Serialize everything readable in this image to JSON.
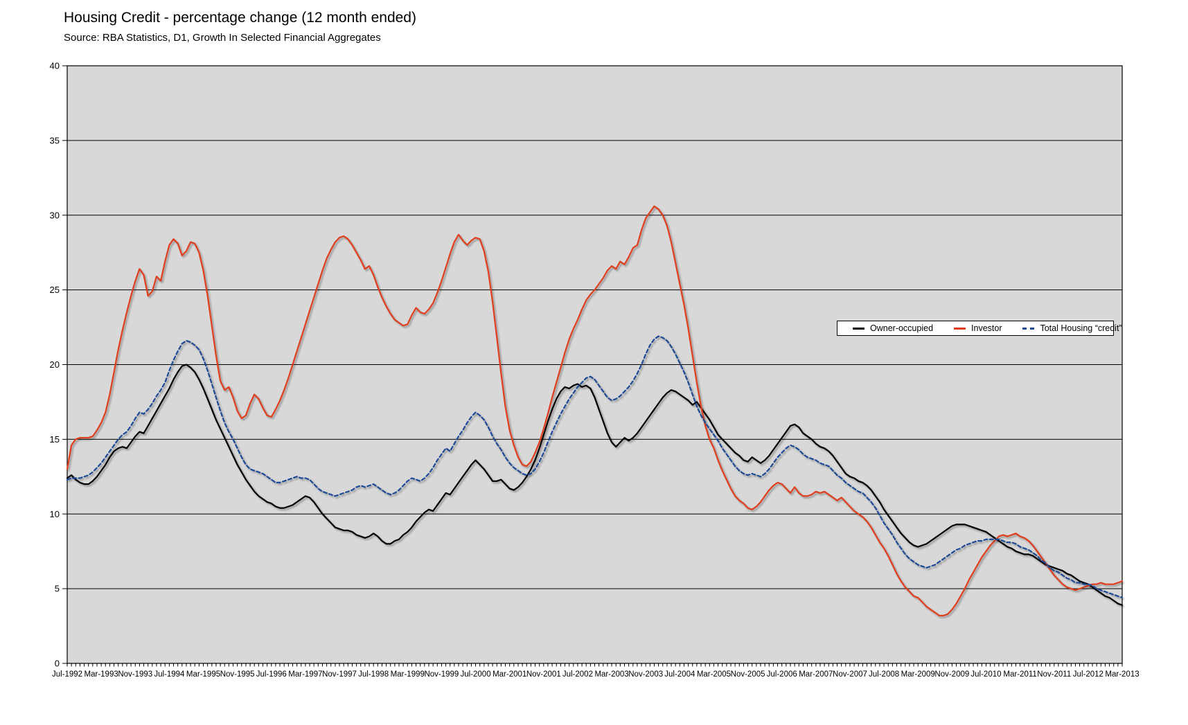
{
  "chart_data": {
    "type": "line",
    "title": "Housing Credit - percentage change (12 month ended)",
    "source": "Source: RBA Statistics, D1, Growth In Selected Financial Aggregates",
    "ylim": [
      0,
      40
    ],
    "ytick_step": 5,
    "grid": "horizontal",
    "plot_bg": "#d8d8d8",
    "axis_color": "#000000",
    "legend_position": "middle-right",
    "x_start": "Jul-1992",
    "x_end": "Mar-2013",
    "x_interval": "monthly",
    "x_tick_labels": [
      "Jul-1992",
      "Mar-1993",
      "Nov-1993",
      "Jul-1994",
      "Mar-1995",
      "Nov-1995",
      "Jul-1996",
      "Mar-1997",
      "Nov-1997",
      "Jul-1998",
      "Mar-1999",
      "Nov-1999",
      "Jul-2000",
      "Mar-2001",
      "Nov-2001",
      "Jul-2002",
      "Mar-2003",
      "Nov-2003",
      "Jul-2004",
      "Mar-2005",
      "Nov-2005",
      "Jul-2006",
      "Mar-2007",
      "Nov-2007",
      "Jul-2008",
      "Mar-2009",
      "Nov-2009",
      "Jul-2010",
      "Mar-2011",
      "Nov-2011",
      "Jul-2012",
      "Mar-2013"
    ],
    "x_label_every_n_months": 8,
    "series": [
      {
        "name": "Owner-occupied",
        "color": "#000000",
        "style": "solid",
        "values": [
          12.4,
          12.6,
          12.3,
          12.1,
          12.0,
          12.0,
          12.2,
          12.5,
          12.9,
          13.3,
          13.8,
          14.2,
          14.4,
          14.5,
          14.4,
          14.8,
          15.2,
          15.5,
          15.4,
          15.9,
          16.4,
          16.9,
          17.4,
          17.9,
          18.4,
          19.0,
          19.5,
          19.9,
          20.0,
          19.8,
          19.5,
          19.0,
          18.4,
          17.7,
          17.0,
          16.3,
          15.7,
          15.1,
          14.5,
          13.9,
          13.3,
          12.8,
          12.3,
          11.9,
          11.5,
          11.2,
          11.0,
          10.8,
          10.7,
          10.5,
          10.4,
          10.4,
          10.5,
          10.6,
          10.8,
          11.0,
          11.2,
          11.1,
          10.8,
          10.4,
          10.0,
          9.7,
          9.4,
          9.1,
          9.0,
          8.9,
          8.9,
          8.8,
          8.6,
          8.5,
          8.4,
          8.5,
          8.7,
          8.5,
          8.2,
          8.0,
          8.0,
          8.2,
          8.3,
          8.6,
          8.8,
          9.1,
          9.5,
          9.8,
          10.1,
          10.3,
          10.2,
          10.6,
          11.0,
          11.4,
          11.3,
          11.7,
          12.1,
          12.5,
          12.9,
          13.3,
          13.6,
          13.3,
          13.0,
          12.6,
          12.2,
          12.2,
          12.3,
          12.0,
          11.7,
          11.6,
          11.8,
          12.1,
          12.5,
          13.0,
          13.6,
          14.4,
          15.3,
          16.2,
          17.0,
          17.7,
          18.2,
          18.5,
          18.4,
          18.6,
          18.7,
          18.5,
          18.6,
          18.4,
          17.8,
          17.0,
          16.2,
          15.4,
          14.8,
          14.5,
          14.8,
          15.1,
          14.9,
          15.1,
          15.4,
          15.8,
          16.2,
          16.6,
          17.0,
          17.4,
          17.8,
          18.1,
          18.3,
          18.2,
          18.0,
          17.8,
          17.6,
          17.3,
          17.5,
          17.1,
          16.7,
          16.3,
          15.8,
          15.3,
          15.0,
          14.7,
          14.4,
          14.1,
          13.9,
          13.6,
          13.5,
          13.8,
          13.6,
          13.4,
          13.6,
          13.9,
          14.3,
          14.7,
          15.1,
          15.5,
          15.9,
          16.0,
          15.8,
          15.4,
          15.2,
          15.0,
          14.7,
          14.5,
          14.4,
          14.2,
          13.9,
          13.5,
          13.1,
          12.7,
          12.5,
          12.4,
          12.2,
          12.1,
          11.9,
          11.6,
          11.2,
          10.8,
          10.3,
          9.9,
          9.5,
          9.1,
          8.7,
          8.4,
          8.1,
          7.9,
          7.8,
          7.9,
          8.0,
          8.2,
          8.4,
          8.6,
          8.8,
          9.0,
          9.2,
          9.3,
          9.3,
          9.3,
          9.2,
          9.1,
          9.0,
          8.9,
          8.8,
          8.6,
          8.4,
          8.2,
          8.0,
          7.8,
          7.7,
          7.5,
          7.4,
          7.3,
          7.3,
          7.2,
          7.0,
          6.8,
          6.6,
          6.5,
          6.4,
          6.3,
          6.2,
          6.0,
          5.9,
          5.7,
          5.5,
          5.4,
          5.3,
          5.1,
          4.9,
          4.7,
          4.5,
          4.4,
          4.2,
          4.0,
          3.9
        ]
      },
      {
        "name": "Investor",
        "color": "#e03c1c",
        "style": "solid",
        "values": [
          13.0,
          14.6,
          15.0,
          15.1,
          15.1,
          15.1,
          15.2,
          15.6,
          16.1,
          16.8,
          18.0,
          19.5,
          21.0,
          22.3,
          23.5,
          24.6,
          25.6,
          26.4,
          26.0,
          24.6,
          24.9,
          25.9,
          25.6,
          26.9,
          28.0,
          28.4,
          28.1,
          27.3,
          27.6,
          28.2,
          28.1,
          27.5,
          26.3,
          24.6,
          22.6,
          20.6,
          18.9,
          18.3,
          18.5,
          17.8,
          16.9,
          16.4,
          16.6,
          17.4,
          18.0,
          17.7,
          17.1,
          16.6,
          16.5,
          17.0,
          17.6,
          18.3,
          19.1,
          20.0,
          20.9,
          21.8,
          22.7,
          23.6,
          24.5,
          25.4,
          26.3,
          27.1,
          27.7,
          28.2,
          28.5,
          28.6,
          28.4,
          28.0,
          27.5,
          27.0,
          26.4,
          26.6,
          26.0,
          25.2,
          24.5,
          23.9,
          23.4,
          23.0,
          22.8,
          22.6,
          22.7,
          23.3,
          23.8,
          23.5,
          23.4,
          23.7,
          24.1,
          24.8,
          25.6,
          26.5,
          27.4,
          28.2,
          28.7,
          28.3,
          28.0,
          28.3,
          28.5,
          28.4,
          27.6,
          26.2,
          24.2,
          21.8,
          19.4,
          17.2,
          15.6,
          14.6,
          13.8,
          13.3,
          13.2,
          13.5,
          14.1,
          14.8,
          15.7,
          16.7,
          17.8,
          18.8,
          19.8,
          20.8,
          21.7,
          22.4,
          23.0,
          23.7,
          24.3,
          24.7,
          25.0,
          25.4,
          25.8,
          26.3,
          26.6,
          26.4,
          26.9,
          26.7,
          27.2,
          27.8,
          28.0,
          29.0,
          29.8,
          30.2,
          30.6,
          30.4,
          30.0,
          29.3,
          28.2,
          26.8,
          25.4,
          24.0,
          22.4,
          20.6,
          18.8,
          17.2,
          15.9,
          15.0,
          14.4,
          13.6,
          12.9,
          12.3,
          11.7,
          11.2,
          10.9,
          10.7,
          10.4,
          10.3,
          10.5,
          10.8,
          11.2,
          11.6,
          11.9,
          12.1,
          12.0,
          11.7,
          11.4,
          11.8,
          11.4,
          11.2,
          11.2,
          11.3,
          11.5,
          11.4,
          11.5,
          11.3,
          11.1,
          10.9,
          11.1,
          10.8,
          10.5,
          10.2,
          10.0,
          9.8,
          9.5,
          9.1,
          8.6,
          8.1,
          7.7,
          7.2,
          6.6,
          6.0,
          5.5,
          5.1,
          4.8,
          4.5,
          4.4,
          4.1,
          3.8,
          3.6,
          3.4,
          3.2,
          3.2,
          3.3,
          3.6,
          4.0,
          4.5,
          5.0,
          5.6,
          6.1,
          6.6,
          7.1,
          7.5,
          7.9,
          8.2,
          8.5,
          8.6,
          8.5,
          8.6,
          8.7,
          8.5,
          8.4,
          8.2,
          7.9,
          7.5,
          7.1,
          6.7,
          6.3,
          5.9,
          5.6,
          5.3,
          5.1,
          5.0,
          4.9,
          5.0,
          5.1,
          5.2,
          5.3,
          5.3,
          5.4,
          5.3,
          5.3,
          5.3,
          5.4,
          5.5
        ]
      },
      {
        "name": "Total Housing “credit”",
        "color": "#1d4a96",
        "style": "dashed",
        "values": [
          12.3,
          12.4,
          12.4,
          12.4,
          12.5,
          12.6,
          12.8,
          13.1,
          13.4,
          13.8,
          14.2,
          14.6,
          15.0,
          15.3,
          15.5,
          15.9,
          16.4,
          16.8,
          16.7,
          17.0,
          17.4,
          17.9,
          18.3,
          18.8,
          19.6,
          20.3,
          20.9,
          21.4,
          21.6,
          21.5,
          21.3,
          21.0,
          20.4,
          19.6,
          18.7,
          17.8,
          16.9,
          16.1,
          15.5,
          15.0,
          14.4,
          13.8,
          13.3,
          13.0,
          12.9,
          12.8,
          12.7,
          12.5,
          12.3,
          12.1,
          12.1,
          12.2,
          12.3,
          12.4,
          12.5,
          12.4,
          12.4,
          12.3,
          12.0,
          11.7,
          11.5,
          11.4,
          11.3,
          11.2,
          11.3,
          11.4,
          11.5,
          11.6,
          11.8,
          11.9,
          11.8,
          11.9,
          12.0,
          11.8,
          11.6,
          11.4,
          11.3,
          11.4,
          11.6,
          11.9,
          12.2,
          12.4,
          12.3,
          12.2,
          12.4,
          12.7,
          13.1,
          13.6,
          14.0,
          14.4,
          14.2,
          14.7,
          15.2,
          15.6,
          16.1,
          16.5,
          16.8,
          16.6,
          16.3,
          15.8,
          15.2,
          14.7,
          14.3,
          13.8,
          13.4,
          13.1,
          12.9,
          12.7,
          12.6,
          12.7,
          13.0,
          13.5,
          14.1,
          14.8,
          15.5,
          16.1,
          16.7,
          17.2,
          17.7,
          18.1,
          18.5,
          18.8,
          19.1,
          19.2,
          19.0,
          18.6,
          18.2,
          17.8,
          17.6,
          17.7,
          17.9,
          18.2,
          18.5,
          18.9,
          19.4,
          20.0,
          20.7,
          21.3,
          21.7,
          21.9,
          21.8,
          21.6,
          21.2,
          20.7,
          20.1,
          19.5,
          18.8,
          18.0,
          17.2,
          16.6,
          16.1,
          15.7,
          15.3,
          14.9,
          14.4,
          14.0,
          13.6,
          13.2,
          12.9,
          12.7,
          12.6,
          12.7,
          12.6,
          12.5,
          12.7,
          13.0,
          13.4,
          13.8,
          14.1,
          14.4,
          14.6,
          14.5,
          14.3,
          14.0,
          13.8,
          13.7,
          13.6,
          13.4,
          13.3,
          13.2,
          12.9,
          12.6,
          12.4,
          12.1,
          11.9,
          11.7,
          11.5,
          11.4,
          11.1,
          10.8,
          10.4,
          9.9,
          9.4,
          9.0,
          8.6,
          8.1,
          7.7,
          7.3,
          7.0,
          6.8,
          6.6,
          6.5,
          6.4,
          6.5,
          6.6,
          6.8,
          7.0,
          7.2,
          7.4,
          7.6,
          7.7,
          7.9,
          8.0,
          8.1,
          8.2,
          8.2,
          8.3,
          8.3,
          8.3,
          8.3,
          8.2,
          8.1,
          8.1,
          8.0,
          7.8,
          7.7,
          7.6,
          7.4,
          7.2,
          6.9,
          6.7,
          6.4,
          6.2,
          6.1,
          5.9,
          5.7,
          5.6,
          5.4,
          5.4,
          5.3,
          5.3,
          5.2,
          5.0,
          4.9,
          4.8,
          4.7,
          4.6,
          4.5,
          4.4
        ]
      }
    ]
  }
}
